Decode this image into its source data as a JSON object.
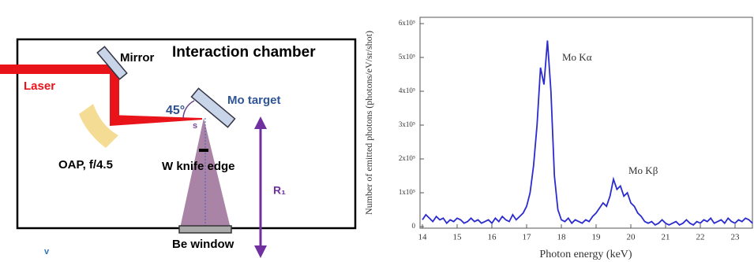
{
  "diagram": {
    "chamber_label": "Interaction chamber",
    "mirror": "Mirror",
    "laser": "Laser",
    "angle": "45°",
    "target": "Mo target",
    "source": "s",
    "oap": "OAP, f/4.5",
    "knife": "W knife edge",
    "distance": "R₁",
    "window": "Be window",
    "corner_mark": "v"
  },
  "chart_data": {
    "type": "line",
    "x_label": "Photon energy (keV)",
    "y_label": "Number of emitted photons (photons/eV/sr/shot)",
    "annotations": [
      "Mo Kα",
      "Mo Kβ"
    ],
    "color": "#2b2bd0",
    "xlim": [
      14,
      23.5
    ],
    "ylim": [
      0,
      600000
    ],
    "xticks": [
      14,
      15,
      16,
      17,
      18,
      19,
      20,
      21,
      22,
      23
    ],
    "yticks": [
      0,
      {
        "value": 100000,
        "label": "1x10⁵"
      },
      {
        "value": 200000,
        "label": "2x10⁵"
      },
      {
        "value": 300000,
        "label": "3x10⁵"
      },
      {
        "value": 400000,
        "label": "4x10⁵"
      },
      {
        "value": 500000,
        "label": "5x10⁵"
      },
      {
        "value": 600000,
        "label": "6x10⁵"
      }
    ],
    "x": [
      14.0,
      14.1,
      14.2,
      14.3,
      14.4,
      14.5,
      14.6,
      14.7,
      14.8,
      14.9,
      15.0,
      15.1,
      15.2,
      15.3,
      15.4,
      15.5,
      15.6,
      15.7,
      15.8,
      15.9,
      16.0,
      16.1,
      16.2,
      16.3,
      16.4,
      16.5,
      16.6,
      16.7,
      16.8,
      16.9,
      17.0,
      17.1,
      17.2,
      17.3,
      17.4,
      17.5,
      17.6,
      17.7,
      17.8,
      17.9,
      18.0,
      18.1,
      18.2,
      18.3,
      18.4,
      18.5,
      18.6,
      18.7,
      18.8,
      18.9,
      19.0,
      19.1,
      19.2,
      19.3,
      19.4,
      19.5,
      19.6,
      19.7,
      19.8,
      19.9,
      20.0,
      20.1,
      20.2,
      20.3,
      20.4,
      20.5,
      20.6,
      20.7,
      20.8,
      20.9,
      21.0,
      21.1,
      21.2,
      21.3,
      21.4,
      21.5,
      21.6,
      21.7,
      21.8,
      21.9,
      22.0,
      22.1,
      22.2,
      22.3,
      22.4,
      22.5,
      22.6,
      22.7,
      22.8,
      22.9,
      23.0,
      23.1,
      23.2,
      23.3,
      23.4,
      23.5
    ],
    "values": [
      20000,
      35000,
      25000,
      15000,
      30000,
      20000,
      25000,
      10000,
      20000,
      15000,
      25000,
      20000,
      10000,
      15000,
      25000,
      15000,
      20000,
      10000,
      15000,
      20000,
      10000,
      25000,
      15000,
      30000,
      20000,
      15000,
      35000,
      20000,
      30000,
      40000,
      60000,
      100000,
      180000,
      300000,
      470000,
      420000,
      550000,
      400000,
      150000,
      50000,
      20000,
      15000,
      25000,
      10000,
      20000,
      15000,
      10000,
      20000,
      15000,
      30000,
      40000,
      55000,
      70000,
      60000,
      90000,
      140000,
      110000,
      120000,
      90000,
      100000,
      70000,
      60000,
      40000,
      30000,
      15000,
      10000,
      15000,
      5000,
      10000,
      20000,
      10000,
      5000,
      10000,
      15000,
      5000,
      10000,
      20000,
      10000,
      5000,
      15000,
      10000,
      20000,
      15000,
      25000,
      10000,
      15000,
      20000,
      10000,
      25000,
      15000,
      10000,
      20000,
      15000,
      25000,
      20000,
      10000
    ]
  }
}
